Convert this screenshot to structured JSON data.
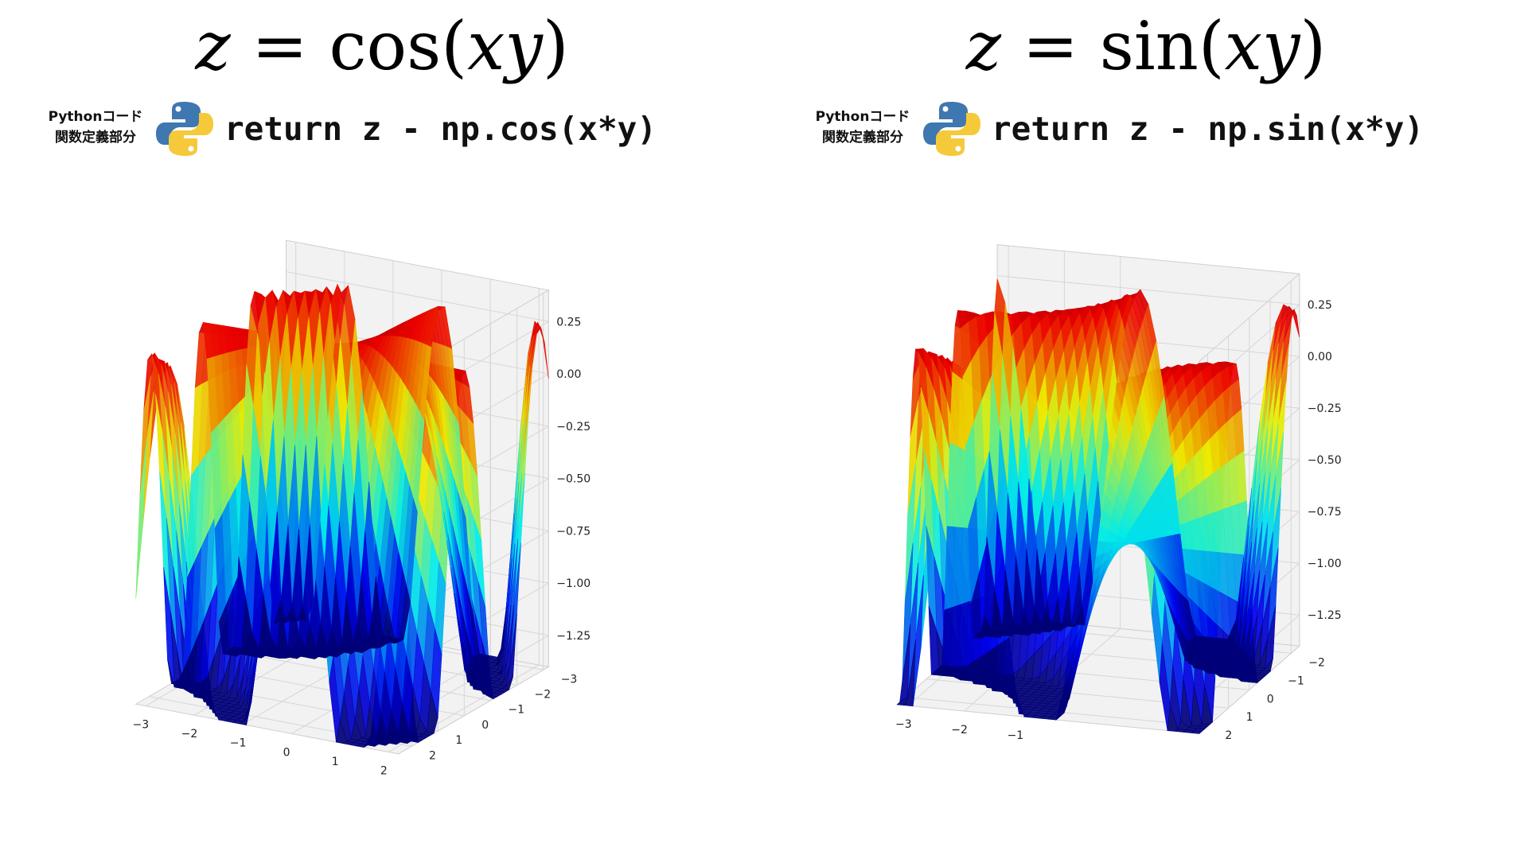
{
  "panels": [
    {
      "title": {
        "z": "z",
        "eq": " = ",
        "fn": "cos",
        "open": "(",
        "arg": "xy",
        "close": ")"
      },
      "code_caption_line1": "Pythonコード",
      "code_caption_line2": "関数定義部分",
      "logo_icon": "python-logo-icon",
      "code": "return z - np.cos(x*y)"
    },
    {
      "title": {
        "z": "z",
        "eq": " = ",
        "fn": "sin",
        "open": "(",
        "arg": "xy",
        "close": ")"
      },
      "code_caption_line1": "Pythonコード",
      "code_caption_line2": "関数定義部分",
      "logo_icon": "python-logo-icon",
      "code": "return z - np.sin(x*y)"
    }
  ],
  "colors": {
    "logo_blue": "#3f77b0",
    "logo_yellow": "#f5c93a",
    "pane_fill": "#f2f2f2",
    "grid": "#d6d6d6"
  },
  "chart_data": [
    {
      "type": "surface3d",
      "function": "cos",
      "colormap": "jet",
      "x_range": [
        -3.2,
        2.2
      ],
      "y_range": [
        -3.2,
        2.5
      ],
      "z_range": [
        -1.4,
        0.4
      ],
      "x_ticks": [
        -3,
        -2,
        -1,
        0,
        1,
        2
      ],
      "x_tick_labels": [
        "−3",
        "−2",
        "−1",
        "0",
        "1",
        "2"
      ],
      "y_ticks": [
        -3,
        -2,
        -1,
        0,
        1,
        2
      ],
      "y_tick_labels": [
        "−3",
        "−2",
        "−1",
        "0",
        "1",
        "2"
      ],
      "z_ticks": [
        0.25,
        0,
        -0.25,
        -0.5,
        -0.75,
        -1,
        -1.25
      ],
      "z_tick_labels": [
        "0.25",
        "0.00",
        "−0.25",
        "−0.50",
        "−0.75",
        "−1.00",
        "−1.25"
      ],
      "grid": true
    },
    {
      "type": "surface3d",
      "function": "sin",
      "colormap": "jet",
      "x_range": [
        -3.2,
        2.2
      ],
      "y_range": [
        -2.4,
        2.4
      ],
      "z_range": [
        -1.4,
        0.4
      ],
      "x_ticks": [
        -3,
        -2,
        -1
      ],
      "x_tick_labels": [
        "−3",
        "−2",
        "−1"
      ],
      "y_ticks": [
        -2,
        -1,
        0,
        1,
        2
      ],
      "y_tick_labels": [
        "−2",
        "−1",
        "0",
        "1",
        "2"
      ],
      "z_ticks": [
        0.25,
        0,
        -0.25,
        -0.5,
        -0.75,
        -1,
        -1.25
      ],
      "z_tick_labels": [
        "0.25",
        "0.00",
        "−0.25",
        "−0.50",
        "−0.75",
        "−1.00",
        "−1.25"
      ],
      "grid": true
    }
  ]
}
